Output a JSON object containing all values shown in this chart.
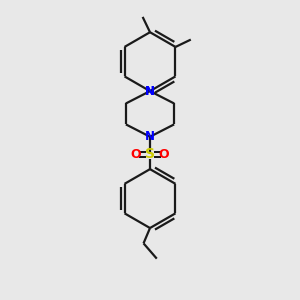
{
  "background_color": "#e8e8e8",
  "bond_color": "#1a1a1a",
  "N_color": "#0000ff",
  "O_color": "#ff0000",
  "S_color": "#cccc00",
  "line_width": 1.6,
  "figsize": [
    3.0,
    3.0
  ],
  "dpi": 100,
  "xlim": [
    0,
    10
  ],
  "ylim": [
    0,
    10
  ]
}
